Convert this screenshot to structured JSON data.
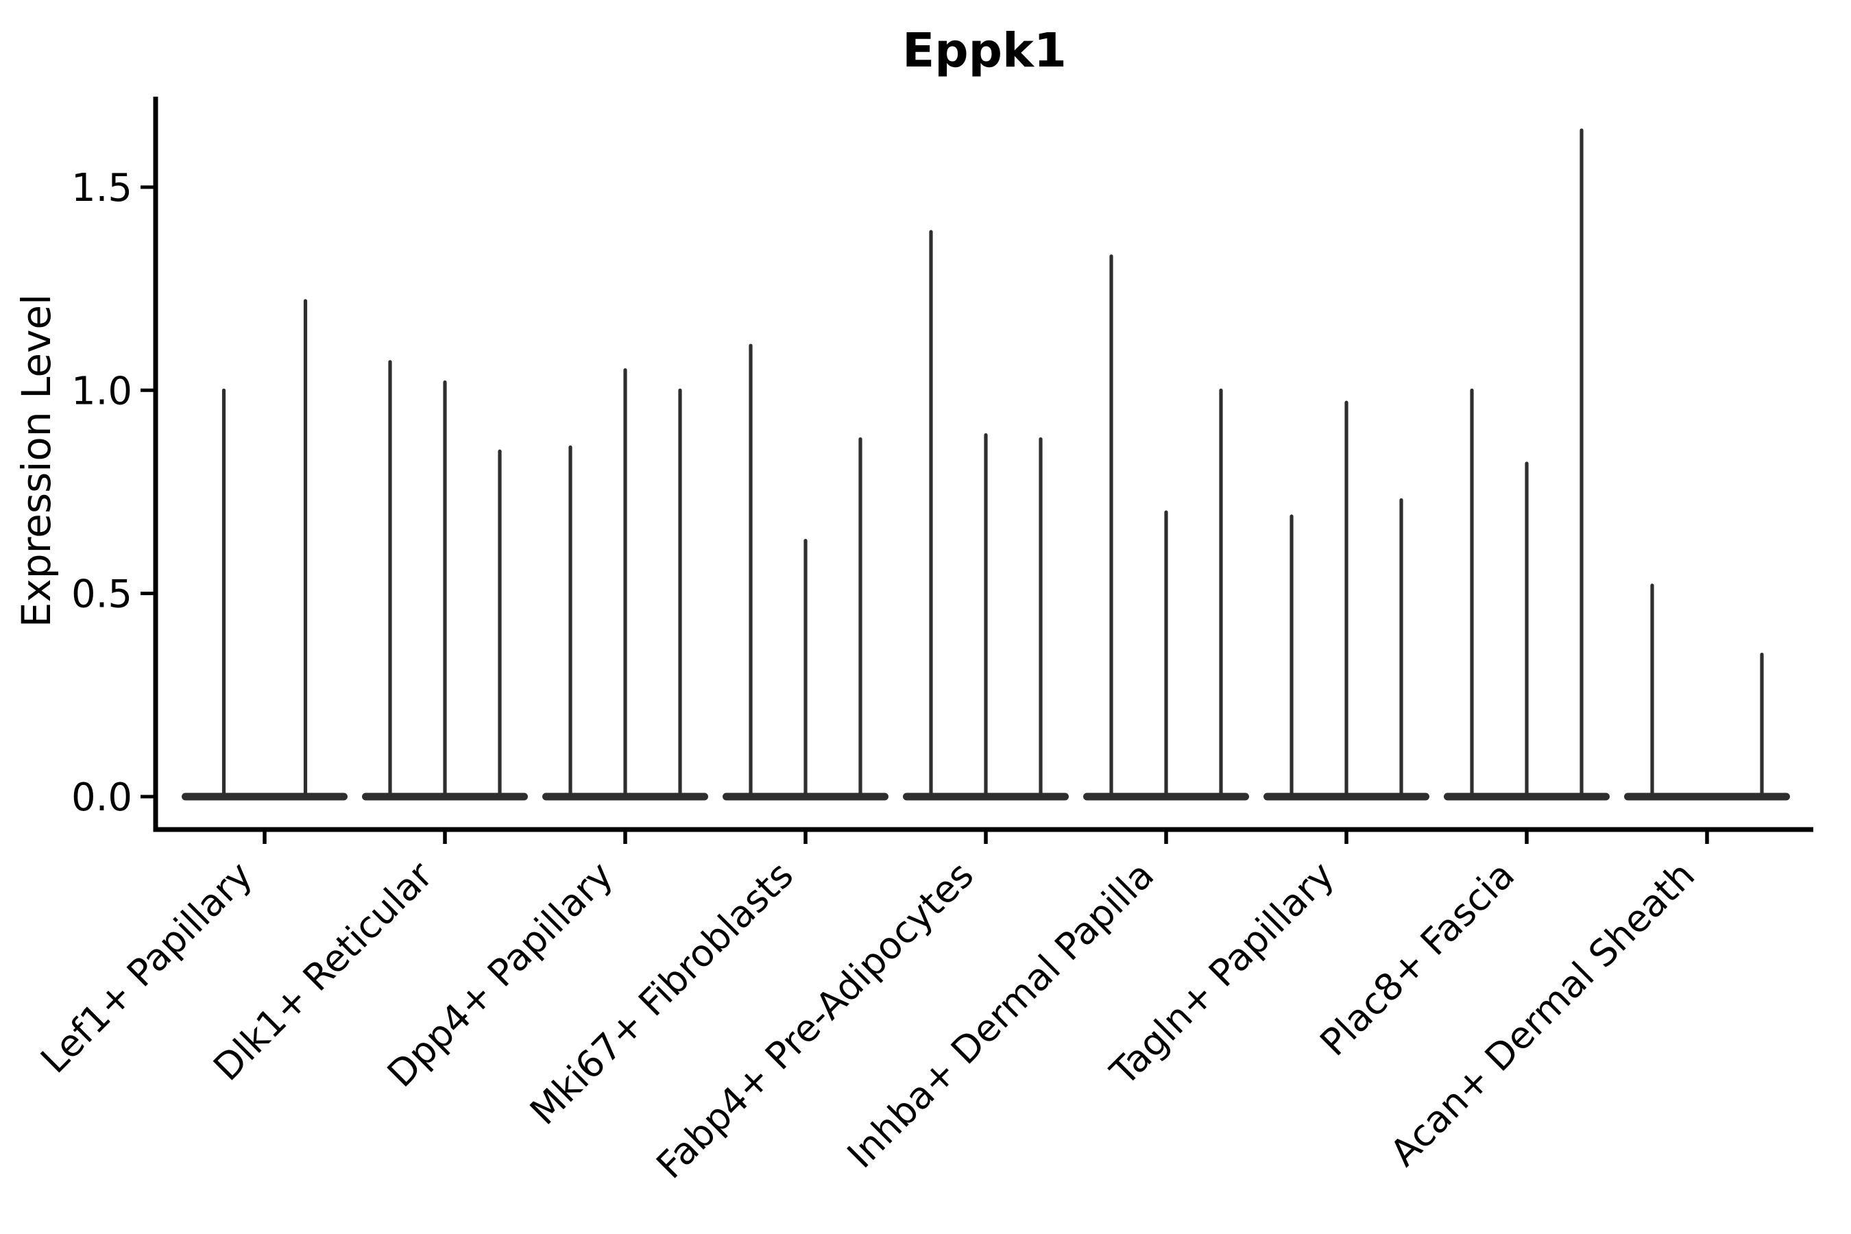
{
  "chart_data": {
    "type": "violin",
    "title": "Eppk1",
    "xlabel": "",
    "ylabel": "Expression Level",
    "yticks": [
      0.0,
      0.5,
      1.0,
      1.5
    ],
    "ylim": [
      0,
      1.72
    ],
    "grid": false,
    "legend": false,
    "x_tick_label_rotation_deg": 45,
    "violin_color": "#2e2e2e",
    "axis_color": "#000000",
    "categories": [
      "Lef1+ Papillary",
      "Dlk1+ Reticular",
      "Dpp4+ Papillary",
      "Mki67+ Fibroblasts",
      "Fabp4+ Pre-Adipocytes",
      "Inhba+ Dermal Papilla",
      "Tagln+ Papillary",
      "Plac8+ Fascia",
      "Acan+ Dermal Sheath"
    ],
    "description": "Collapsed violins: flat body at expression 0 with thin vertical spikes; each category holds 2-3 sub-violins and each spike top is the max expression level of that sub-violin.",
    "groups": [
      {
        "category": "Lef1+ Papillary",
        "spike_peaks": [
          1.0,
          1.22
        ],
        "spike_offsets": [
          -59.5,
          59.5
        ]
      },
      {
        "category": "Dlk1+ Reticular",
        "spike_peaks": [
          1.07,
          1.02,
          0.85
        ],
        "spike_offsets": [
          -80,
          0,
          80
        ]
      },
      {
        "category": "Dpp4+ Papillary",
        "spike_peaks": [
          0.86,
          1.05,
          1.0
        ],
        "spike_offsets": [
          -80,
          0,
          80
        ]
      },
      {
        "category": "Mki67+ Fibroblasts",
        "spike_peaks": [
          1.11,
          0.63,
          0.88
        ],
        "spike_offsets": [
          -80,
          0,
          80
        ]
      },
      {
        "category": "Fabp4+ Pre-Adipocytes",
        "spike_peaks": [
          1.39,
          0.89,
          0.88
        ],
        "spike_offsets": [
          -80,
          0,
          80
        ]
      },
      {
        "category": "Inhba+ Dermal Papilla",
        "spike_peaks": [
          1.33,
          0.7,
          1.0
        ],
        "spike_offsets": [
          -80,
          0,
          80
        ]
      },
      {
        "category": "Tagln+ Papillary",
        "spike_peaks": [
          0.69,
          0.97,
          0.73
        ],
        "spike_offsets": [
          -80,
          0,
          80
        ]
      },
      {
        "category": "Plac8+ Fascia",
        "spike_peaks": [
          1.0,
          0.82,
          1.64
        ],
        "spike_offsets": [
          -80,
          0,
          80
        ]
      },
      {
        "category": "Acan+ Dermal Sheath",
        "spike_peaks": [
          0.52,
          0.0,
          0.35
        ],
        "spike_offsets": [
          -80,
          0,
          80
        ]
      }
    ]
  }
}
